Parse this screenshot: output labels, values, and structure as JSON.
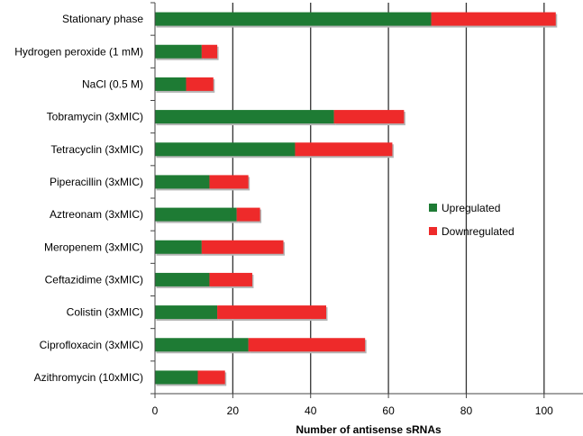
{
  "chart_data": {
    "type": "bar",
    "orientation": "horizontal",
    "stacked": true,
    "title": "",
    "xlabel": "Number of antisense sRNAs",
    "ylabel": "",
    "xlim": [
      0,
      110
    ],
    "xticks": [
      0,
      20,
      40,
      60,
      80,
      100
    ],
    "grid": true,
    "legend_position": "right",
    "categories": [
      "Stationary phase",
      "Hydrogen peroxide (1 mM)",
      "NaCl (0.5 M)",
      "Tobramycin (3xMIC)",
      "Tetracyclin (3xMIC)",
      "Piperacillin (3xMIC)",
      "Aztreonam (3xMIC)",
      "Meropenem (3xMIC)",
      "Ceftazidime (3xMIC)",
      "Colistin (3xMIC)",
      "Ciprofloxacin (3xMIC)",
      "Azithromycin (10xMIC)"
    ],
    "series": [
      {
        "name": "Upregulated",
        "color": "#1e7b34",
        "values": [
          71,
          12,
          8,
          46,
          36,
          14,
          21,
          12,
          14,
          16,
          24,
          11
        ]
      },
      {
        "name": "Downregulated",
        "color": "#ee2a2a",
        "values": [
          32,
          4,
          7,
          18,
          25,
          10,
          6,
          21,
          11,
          28,
          30,
          7
        ]
      }
    ]
  }
}
